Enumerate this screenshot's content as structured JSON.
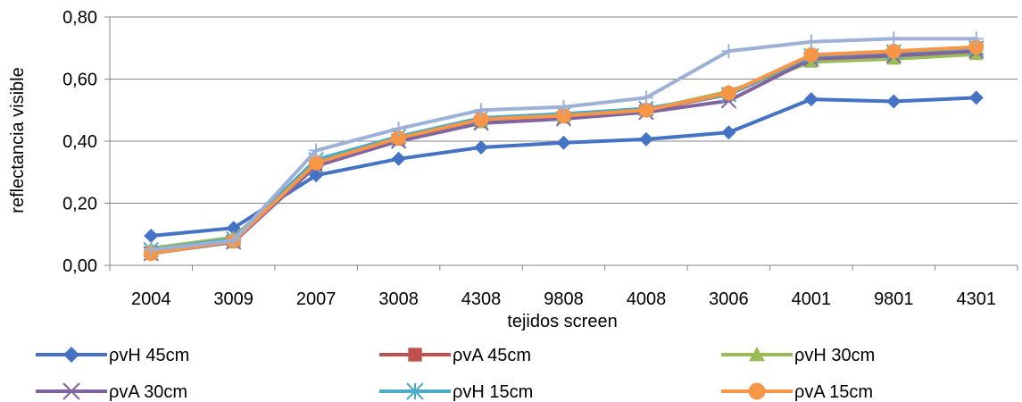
{
  "chart_data": {
    "type": "line",
    "title": "",
    "xlabel": "tejidos screen",
    "ylabel": "reflectancia visible",
    "categories": [
      "2004",
      "3009",
      "2007",
      "3008",
      "4308",
      "9808",
      "4008",
      "3006",
      "4001",
      "9801",
      "4301"
    ],
    "ylim": [
      0,
      0.8
    ],
    "yticks": [
      0,
      0.2,
      0.4,
      0.6,
      0.8
    ],
    "ytick_labels": [
      "0,00",
      "0,20",
      "0,40",
      "0,60",
      "0,80"
    ],
    "grid": "horizontal",
    "legend_position": "bottom",
    "series": [
      {
        "name": "ρvH 45cm",
        "color": "#4472C4",
        "marker": "diamond",
        "values": [
          0.095,
          0.12,
          0.29,
          0.343,
          0.38,
          0.395,
          0.406,
          0.428,
          0.535,
          0.528,
          0.54
        ]
      },
      {
        "name": "ρvA 45cm",
        "color": "#C0504D",
        "marker": "square",
        "values": [
          0.04,
          0.075,
          0.325,
          0.405,
          0.465,
          0.478,
          0.5,
          0.55,
          0.67,
          0.68,
          0.695
        ]
      },
      {
        "name": "ρvH 30cm",
        "color": "#9BBB59",
        "marker": "triangle",
        "values": [
          0.055,
          0.09,
          0.335,
          0.41,
          0.46,
          0.475,
          0.5,
          0.56,
          0.655,
          0.665,
          0.68
        ]
      },
      {
        "name": "ρvA  30cm",
        "color": "#8064A2",
        "marker": "x",
        "values": [
          0.038,
          0.075,
          0.32,
          0.4,
          0.458,
          0.472,
          0.493,
          0.53,
          0.665,
          0.675,
          0.69
        ]
      },
      {
        "name": "ρvH 15cm",
        "color": "#4BACC6",
        "marker": "star",
        "values": [
          0.05,
          0.085,
          0.34,
          0.415,
          0.475,
          0.488,
          0.505,
          0.55,
          0.675,
          0.688,
          0.7
        ]
      },
      {
        "name": "ρvA  15cm",
        "color": "#F79646",
        "marker": "circle",
        "values": [
          0.038,
          0.078,
          0.33,
          0.41,
          0.47,
          0.482,
          0.5,
          0.555,
          0.678,
          0.69,
          0.703
        ]
      },
      {
        "name": "",
        "color": "#9DB1D6",
        "marker": "plus",
        "values": [
          0.05,
          0.08,
          0.37,
          0.44,
          0.5,
          0.51,
          0.54,
          0.69,
          0.72,
          0.73,
          0.73
        ]
      }
    ]
  }
}
